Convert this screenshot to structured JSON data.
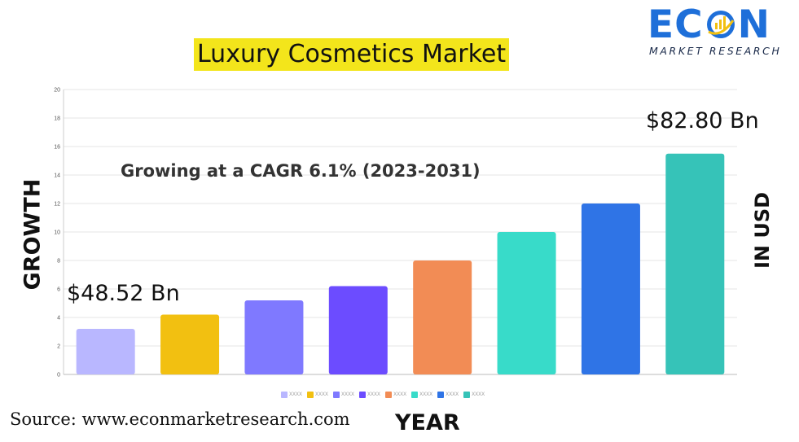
{
  "logo": {
    "word_left": "EC",
    "word_right": "N",
    "subtitle": "MARKET RESEARCH",
    "brand_color": "#1e6fd9"
  },
  "title": "Luxury Cosmetics Market",
  "title_highlight_color": "#f3e51b",
  "cagr_text": "Growing at a CAGR 6.1% (2023-2031)",
  "start_value_label": "$48.52 Bn",
  "end_value_label": "$82.80 Bn",
  "y_axis_title": "GROWTH",
  "right_axis_title": "IN USD",
  "x_axis_title": "YEAR",
  "source": "Source: www.econmarketresearch.com",
  "chart_data": {
    "type": "bar",
    "ylim": [
      0,
      20
    ],
    "yticks": [
      "0",
      "2",
      "4",
      "6",
      "8",
      "10",
      "12",
      "14",
      "16",
      "18",
      "20"
    ],
    "grid": true,
    "legend_position": "bottom",
    "series": [
      {
        "name": "XXXX",
        "value": 3.2,
        "color": "#b9b7ff"
      },
      {
        "name": "XXXX",
        "value": 4.2,
        "color": "#f2c011"
      },
      {
        "name": "XXXX",
        "value": 5.2,
        "color": "#7f79ff"
      },
      {
        "name": "XXXX",
        "value": 6.2,
        "color": "#6c4cff"
      },
      {
        "name": "XXXX",
        "value": 8.0,
        "color": "#f28c55"
      },
      {
        "name": "XXXX",
        "value": 10.0,
        "color": "#38dbc9"
      },
      {
        "name": "XXXX",
        "value": 12.0,
        "color": "#2f74e6"
      },
      {
        "name": "XXXX",
        "value": 15.5,
        "color": "#36c3b8"
      }
    ]
  }
}
